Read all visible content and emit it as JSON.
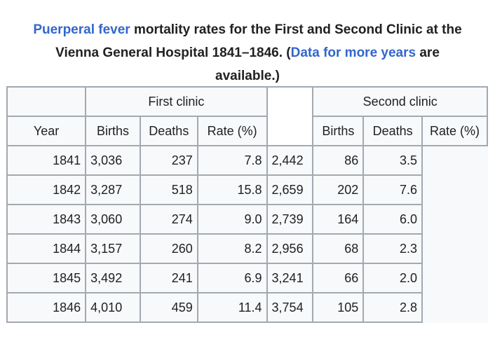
{
  "caption": {
    "link_text": "Puerperal fever",
    "text_1": " mortality rates for the First and Second Clinic at the",
    "text_2": "Vienna General Hospital 1841–1846. (",
    "link2_text": "Data for more years",
    "text_3": " are",
    "text_4": "available.)"
  },
  "table": {
    "group_headers": {
      "first": "First clinic",
      "second": "Second clinic"
    },
    "column_headers": {
      "year": "Year",
      "births1": "Births",
      "deaths1": "Deaths",
      "rate1": "Rate (%)",
      "births2": "Births",
      "deaths2": "Deaths",
      "rate2": "Rate (%)"
    },
    "rows": [
      {
        "year": "1841",
        "births1": "3,036",
        "deaths1": "237",
        "rate1": "7.8",
        "births2": "2,442",
        "deaths2": "86",
        "rate2": "3.5"
      },
      {
        "year": "1842",
        "births1": "3,287",
        "deaths1": "518",
        "rate1": "15.8",
        "births2": "2,659",
        "deaths2": "202",
        "rate2": "7.6"
      },
      {
        "year": "1843",
        "births1": "3,060",
        "deaths1": "274",
        "rate1": "9.0",
        "births2": "2,739",
        "deaths2": "164",
        "rate2": "6.0"
      },
      {
        "year": "1844",
        "births1": "3,157",
        "deaths1": "260",
        "rate1": "8.2",
        "births2": "2,956",
        "deaths2": "68",
        "rate2": "2.3"
      },
      {
        "year": "1845",
        "births1": "3,492",
        "deaths1": "241",
        "rate1": "6.9",
        "births2": "3,241",
        "deaths2": "66",
        "rate2": "2.0"
      },
      {
        "year": "1846",
        "births1": "4,010",
        "deaths1": "459",
        "rate1": "11.4",
        "births2": "3,754",
        "deaths2": "105",
        "rate2": "2.8"
      }
    ]
  },
  "colors": {
    "link": "#3366cc",
    "text": "#202122",
    "border": "#a2a9b1",
    "cell_bg": "#f8f9fa"
  }
}
